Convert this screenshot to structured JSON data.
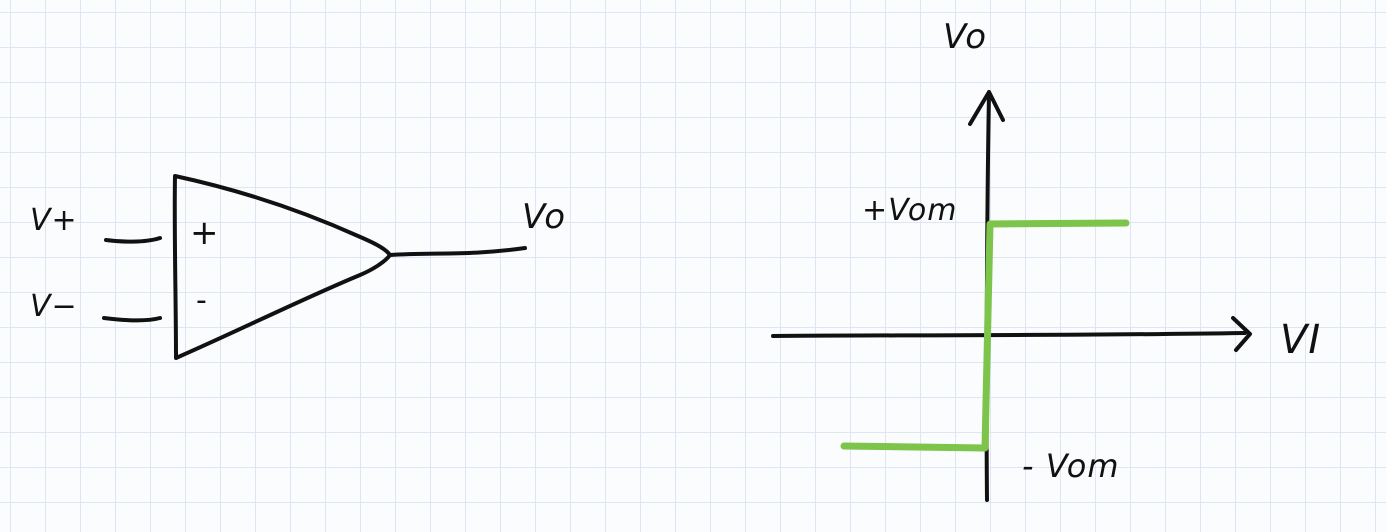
{
  "colors": {
    "ink": "#111111",
    "transfer_curve": "#7cc44a",
    "grid": "#dde6f2",
    "paper": "#fbfcfe"
  },
  "opamp": {
    "input_plus_label": "V+",
    "input_minus_label": "V−",
    "plus_sign": "+",
    "minus_sign": "-",
    "output_label": "Vo"
  },
  "graph": {
    "y_axis_label": "Vo",
    "x_axis_label": "VI",
    "high_level_label": "+Vom",
    "low_level_label": "- Vom"
  }
}
